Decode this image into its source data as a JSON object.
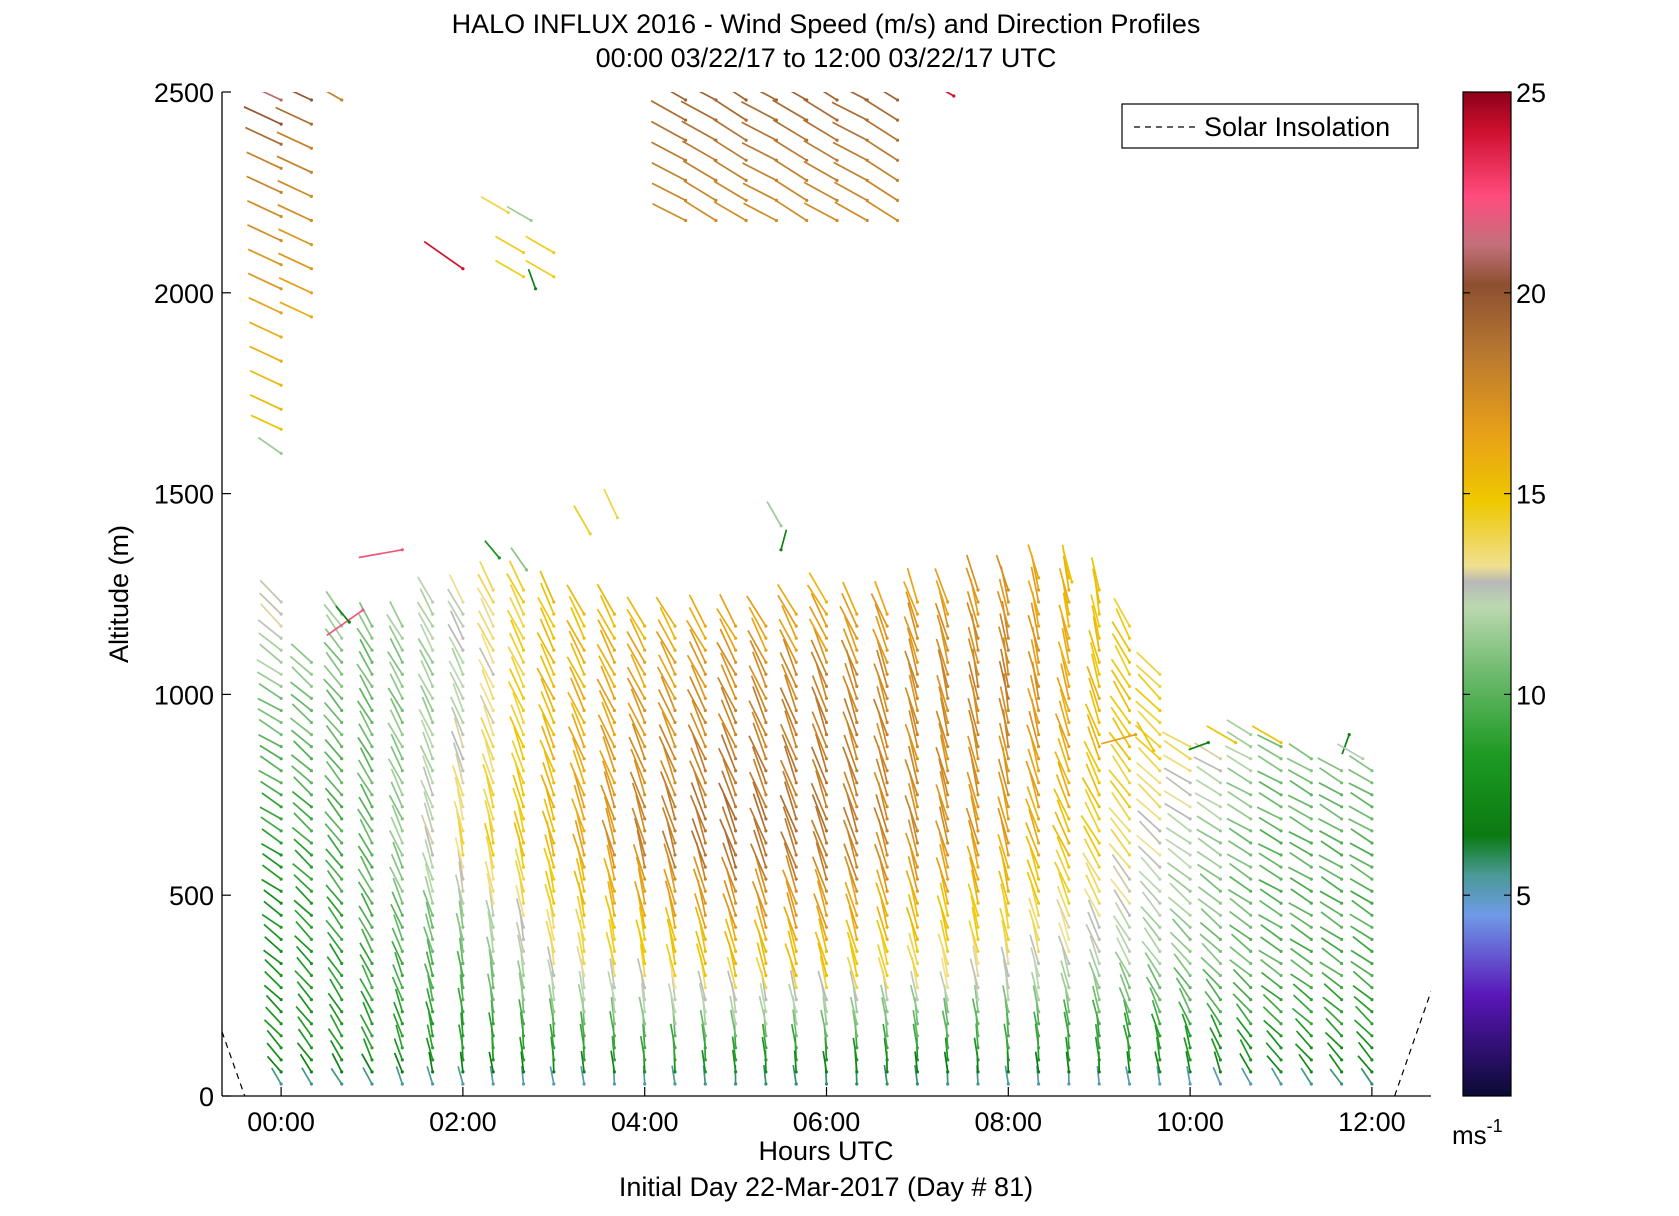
{
  "chart_data": {
    "type": "wind-barb-profile",
    "title": "HALO INFLUX 2016 - Wind Speed (m/s) and Direction Profiles",
    "subtitle": "00:00 03/22/17 to 12:00 03/22/17  UTC",
    "xlabel": "Hours UTC",
    "xlabel2": "Initial Day 22-Mar-2017 (Day # 81)",
    "ylabel": "Altitude (m)",
    "xlim": [
      -0.65,
      12.65
    ],
    "ylim": [
      0,
      2500
    ],
    "xticks": [
      0,
      2,
      4,
      6,
      8,
      10,
      12
    ],
    "xticklabels": [
      "00:00",
      "02:00",
      "04:00",
      "06:00",
      "08:00",
      "10:00",
      "12:00"
    ],
    "yticks": [
      0,
      500,
      1000,
      1500,
      2000,
      2500
    ],
    "yticklabels": [
      "0",
      "500",
      "1000",
      "1500",
      "2000",
      "2500"
    ],
    "legend": {
      "entries": [
        "Solar Insolation"
      ],
      "location": "top-right"
    },
    "colorbar": {
      "range": [
        0,
        25
      ],
      "ticks": [
        5,
        10,
        15,
        20,
        25
      ],
      "ticklabels": [
        "5",
        "10",
        "15",
        "20",
        "25"
      ],
      "unit": "ms",
      "unit_exponent": "-1",
      "colors": [
        {
          "v": 0,
          "c": "#0a0a33"
        },
        {
          "v": 2.5,
          "c": "#5a16b8"
        },
        {
          "v": 4.5,
          "c": "#6f9ae8"
        },
        {
          "v": 5.5,
          "c": "#4a9a96"
        },
        {
          "v": 6.5,
          "c": "#0a7a10"
        },
        {
          "v": 8.5,
          "c": "#1e9a24"
        },
        {
          "v": 10.5,
          "c": "#6cba6c"
        },
        {
          "v": 12.2,
          "c": "#bcd8b0"
        },
        {
          "v": 12.8,
          "c": "#b8b8b8"
        },
        {
          "v": 13.2,
          "c": "#f0e090"
        },
        {
          "v": 14.8,
          "c": "#eec800"
        },
        {
          "v": 16.5,
          "c": "#e8a018"
        },
        {
          "v": 18.5,
          "c": "#b87830"
        },
        {
          "v": 20.2,
          "c": "#8c5030"
        },
        {
          "v": 21.2,
          "c": "#c4707c"
        },
        {
          "v": 22.4,
          "c": "#ff4c7e"
        },
        {
          "v": 24,
          "c": "#d01030"
        },
        {
          "v": 25,
          "c": "#8c0018"
        }
      ]
    },
    "solar_insolation": {
      "style": "dashed",
      "segments": [
        [
          [
            -0.65,
            160
          ],
          [
            -0.4,
            0
          ]
        ],
        [
          [
            12.25,
            0
          ],
          [
            12.65,
            260
          ]
        ]
      ]
    },
    "profile_times_h": [
      0,
      0.333,
      0.667,
      1.0,
      1.333,
      1.667,
      2.0,
      2.333,
      2.667,
      3.0,
      3.333,
      3.667,
      4.0,
      4.333,
      4.667,
      5.0,
      5.333,
      5.667,
      6.0,
      6.333,
      6.667,
      7.0,
      7.333,
      7.667,
      8.0,
      8.333,
      8.667,
      9.0,
      9.333,
      9.667,
      10.0,
      10.333,
      10.667,
      11.0,
      11.333,
      11.667,
      12.0
    ],
    "profile_tops_m": [
      1250,
      1080,
      1200,
      1170,
      1190,
      1240,
      1250,
      1260,
      1270,
      1240,
      1220,
      1200,
      1180,
      1180,
      1180,
      1180,
      1180,
      1200,
      1230,
      1220,
      1200,
      1240,
      1250,
      1260,
      1280,
      1290,
      1300,
      1280,
      1170,
      1060,
      880,
      860,
      900,
      880,
      860,
      820,
      830
    ],
    "profile_spacing_m": 30,
    "profile_keyframes": [
      {
        "t": 0,
        "z": [
          0,
          80,
          500,
          1000,
          1250
        ],
        "speed": [
          3.5,
          8,
          8,
          11,
          13.5
        ],
        "dir": [
          330,
          320,
          305,
          300,
          320
        ]
      },
      {
        "t": 1,
        "z": [
          0,
          80,
          500,
          1000,
          1250
        ],
        "speed": [
          3.5,
          8.5,
          10,
          10.5,
          11
        ],
        "dir": [
          330,
          335,
          330,
          330,
          330
        ]
      },
      {
        "t": 2,
        "z": [
          0,
          80,
          400,
          600,
          1000,
          1250
        ],
        "speed": [
          4,
          8,
          11,
          14,
          12,
          13
        ],
        "dir": [
          345,
          355,
          350,
          350,
          335,
          330
        ]
      },
      {
        "t": 3,
        "z": [
          0,
          80,
          300,
          600,
          1000,
          1250
        ],
        "speed": [
          4,
          8,
          13,
          15.5,
          15.5,
          15
        ],
        "dir": [
          350,
          355,
          350,
          345,
          335,
          335
        ]
      },
      {
        "t": 4,
        "z": [
          0,
          80,
          300,
          600,
          900,
          1200
        ],
        "speed": [
          4,
          8.5,
          14,
          18,
          17,
          15.5
        ],
        "dir": [
          355,
          355,
          350,
          345,
          335,
          330
        ]
      },
      {
        "t": 5,
        "z": [
          0,
          80,
          300,
          600,
          1000,
          1200
        ],
        "speed": [
          4,
          8.5,
          15,
          19,
          17.5,
          16
        ],
        "dir": [
          355,
          355,
          345,
          340,
          335,
          330
        ]
      },
      {
        "t": 6,
        "z": [
          0,
          80,
          300,
          600,
          1000,
          1200
        ],
        "speed": [
          4,
          8,
          15,
          18.5,
          18,
          16
        ],
        "dir": [
          355,
          355,
          345,
          340,
          340,
          330
        ]
      },
      {
        "t": 7,
        "z": [
          0,
          80,
          300,
          600,
          1000,
          1250
        ],
        "speed": [
          4,
          8,
          14,
          17.5,
          17.5,
          16.5
        ],
        "dir": [
          355,
          355,
          345,
          345,
          345,
          340
        ]
      },
      {
        "t": 8,
        "z": [
          0,
          80,
          300,
          600,
          1000,
          1250
        ],
        "speed": [
          4,
          8,
          13,
          16.5,
          18,
          17
        ],
        "dir": [
          355,
          355,
          350,
          345,
          350,
          345
        ]
      },
      {
        "t": 9,
        "z": [
          0,
          80,
          300,
          600,
          900,
          1200
        ],
        "speed": [
          4,
          8,
          12,
          14.5,
          15.5,
          15
        ],
        "dir": [
          355,
          355,
          340,
          330,
          340,
          350
        ]
      },
      {
        "t": 10,
        "z": [
          0,
          80,
          300,
          600,
          900
        ],
        "speed": [
          4,
          8,
          11,
          12,
          14
        ],
        "dir": [
          345,
          350,
          320,
          305,
          300
        ]
      },
      {
        "t": 11,
        "z": [
          0,
          80,
          300,
          600,
          900
        ],
        "speed": [
          4,
          8,
          10,
          10,
          11
        ],
        "dir": [
          330,
          320,
          305,
          300,
          300
        ]
      },
      {
        "t": 12,
        "z": [
          0,
          80,
          300,
          600,
          900
        ],
        "speed": [
          4,
          8,
          9.5,
          10,
          11
        ],
        "dir": [
          330,
          320,
          305,
          300,
          300
        ]
      }
    ],
    "upper_level_arrows": [
      {
        "t": 0.0,
        "z": 2480,
        "speed": 21,
        "dir": 295
      },
      {
        "t": 0.0,
        "z": 2420,
        "speed": 20,
        "dir": 295
      },
      {
        "t": 0.0,
        "z": 2370,
        "speed": 19,
        "dir": 295
      },
      {
        "t": 0.0,
        "z": 2310,
        "speed": 18,
        "dir": 295
      },
      {
        "t": 0.0,
        "z": 2250,
        "speed": 18,
        "dir": 295
      },
      {
        "t": 0.0,
        "z": 2190,
        "speed": 17.5,
        "dir": 295
      },
      {
        "t": 0.0,
        "z": 2130,
        "speed": 17.5,
        "dir": 295
      },
      {
        "t": 0.0,
        "z": 2070,
        "speed": 17,
        "dir": 295
      },
      {
        "t": 0.0,
        "z": 2010,
        "speed": 17,
        "dir": 295
      },
      {
        "t": 0.0,
        "z": 1950,
        "speed": 16.5,
        "dir": 295
      },
      {
        "t": 0.0,
        "z": 1890,
        "speed": 16,
        "dir": 295
      },
      {
        "t": 0.0,
        "z": 1830,
        "speed": 16,
        "dir": 295
      },
      {
        "t": 0.0,
        "z": 1770,
        "speed": 15.5,
        "dir": 295
      },
      {
        "t": 0.0,
        "z": 1710,
        "speed": 15.5,
        "dir": 295
      },
      {
        "t": 0.0,
        "z": 1660,
        "speed": 15,
        "dir": 295
      },
      {
        "t": 0.0,
        "z": 1600,
        "speed": 11.5,
        "dir": 305
      },
      {
        "t": 0.333,
        "z": 2480,
        "speed": 20,
        "dir": 295
      },
      {
        "t": 0.333,
        "z": 2420,
        "speed": 19,
        "dir": 295
      },
      {
        "t": 0.333,
        "z": 2360,
        "speed": 18,
        "dir": 295
      },
      {
        "t": 0.333,
        "z": 2300,
        "speed": 18,
        "dir": 295
      },
      {
        "t": 0.333,
        "z": 2240,
        "speed": 17.5,
        "dir": 295
      },
      {
        "t": 0.333,
        "z": 2180,
        "speed": 17.5,
        "dir": 295
      },
      {
        "t": 0.333,
        "z": 2120,
        "speed": 17,
        "dir": 295
      },
      {
        "t": 0.333,
        "z": 2060,
        "speed": 17,
        "dir": 295
      },
      {
        "t": 0.333,
        "z": 2000,
        "speed": 16.5,
        "dir": 295
      },
      {
        "t": 0.333,
        "z": 1940,
        "speed": 16,
        "dir": 295
      },
      {
        "t": 0.667,
        "z": 2480,
        "speed": 18,
        "dir": 300
      },
      {
        "t": 1.333,
        "z": 1360,
        "speed": 22,
        "dir": 260
      },
      {
        "t": 0.9,
        "z": 1210,
        "speed": 22,
        "dir": 235
      },
      {
        "t": 0.75,
        "z": 1180,
        "speed": 7,
        "dir": 320
      },
      {
        "t": 2.0,
        "z": 2060,
        "speed": 24,
        "dir": 305
      },
      {
        "t": 2.5,
        "z": 2200,
        "speed": 14,
        "dir": 300
      },
      {
        "t": 2.75,
        "z": 2180,
        "speed": 11.5,
        "dir": 300
      },
      {
        "t": 2.667,
        "z": 2100,
        "speed": 14.5,
        "dir": 300
      },
      {
        "t": 3.0,
        "z": 2100,
        "speed": 14.5,
        "dir": 300
      },
      {
        "t": 2.667,
        "z": 2040,
        "speed": 14.5,
        "dir": 300
      },
      {
        "t": 3.0,
        "z": 2040,
        "speed": 14.5,
        "dir": 300
      },
      {
        "t": 2.8,
        "z": 2010,
        "speed": 7,
        "dir": 340
      },
      {
        "t": 2.4,
        "z": 1340,
        "speed": 8,
        "dir": 320
      },
      {
        "t": 2.7,
        "z": 1310,
        "speed": 11,
        "dir": 325
      },
      {
        "t": 3.4,
        "z": 1400,
        "speed": 14.5,
        "dir": 330
      },
      {
        "t": 3.7,
        "z": 1440,
        "speed": 14,
        "dir": 335
      },
      {
        "t": 5.5,
        "z": 1420,
        "speed": 11.5,
        "dir": 330
      },
      {
        "t": 5.5,
        "z": 1360,
        "speed": 7,
        "dir": 15
      },
      {
        "t": 7.4,
        "z": 2490,
        "speed": 24,
        "dir": 300
      },
      {
        "t": 8.7,
        "z": 1280,
        "speed": 15,
        "dir": 345
      },
      {
        "t": 9.4,
        "z": 900,
        "speed": 16.5,
        "dir": 255
      },
      {
        "t": 9.6,
        "z": 860,
        "speed": 15,
        "dir": 330
      },
      {
        "t": 10.2,
        "z": 880,
        "speed": 7,
        "dir": 250
      },
      {
        "t": 10.5,
        "z": 880,
        "speed": 15,
        "dir": 300
      },
      {
        "t": 11.0,
        "z": 880,
        "speed": 15,
        "dir": 300
      },
      {
        "t": 11.75,
        "z": 900,
        "speed": 7,
        "dir": 200
      },
      {
        "t": 11.9,
        "z": 840,
        "speed": 12.5,
        "dir": 300
      }
    ],
    "upper_cluster": {
      "t_range": [
        4.3,
        6.9
      ],
      "z_range": [
        2180,
        2500
      ],
      "t_step": 0.333,
      "z_step": 50,
      "speed": [
        17.5,
        19.5
      ],
      "dir": 300
    }
  }
}
